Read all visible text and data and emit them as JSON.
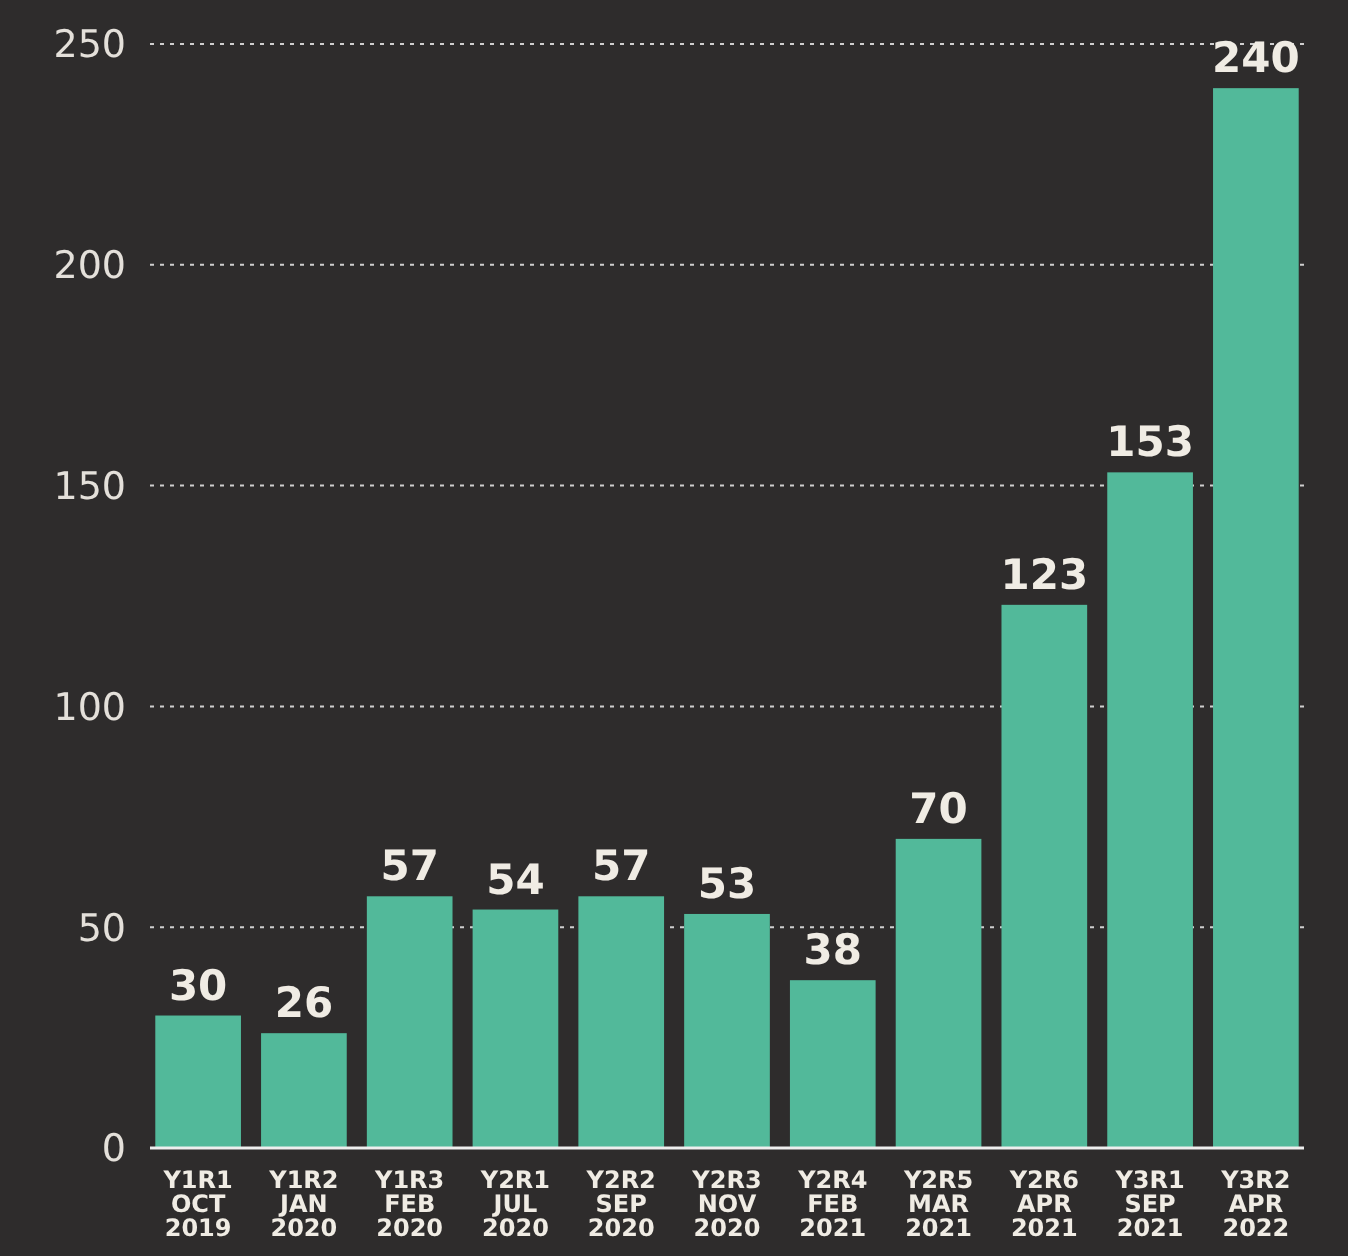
{
  "chart_data": {
    "type": "bar",
    "categories": [
      "Y1R1\nOCT\n2019",
      "Y1R2\nJAN\n2020",
      "Y1R3\nFEB\n2020",
      "Y2R1\nJUL\n2020",
      "Y2R2\nSEP\n2020",
      "Y2R3\nNOV\n2020",
      "Y2R4\nFEB\n2021",
      "Y2R5\nMAR\n2021",
      "Y2R6\nAPR\n2021",
      "Y3R1\nSEP\n2021",
      "Y3R2\nAPR\n2022"
    ],
    "values": [
      30,
      26,
      57,
      54,
      57,
      53,
      38,
      70,
      123,
      153,
      240
    ],
    "color": "#52b99a",
    "ylim": [
      0,
      250
    ],
    "yticks": [
      0,
      50,
      100,
      150,
      200,
      250
    ],
    "grid": "y",
    "data_labels": true
  }
}
